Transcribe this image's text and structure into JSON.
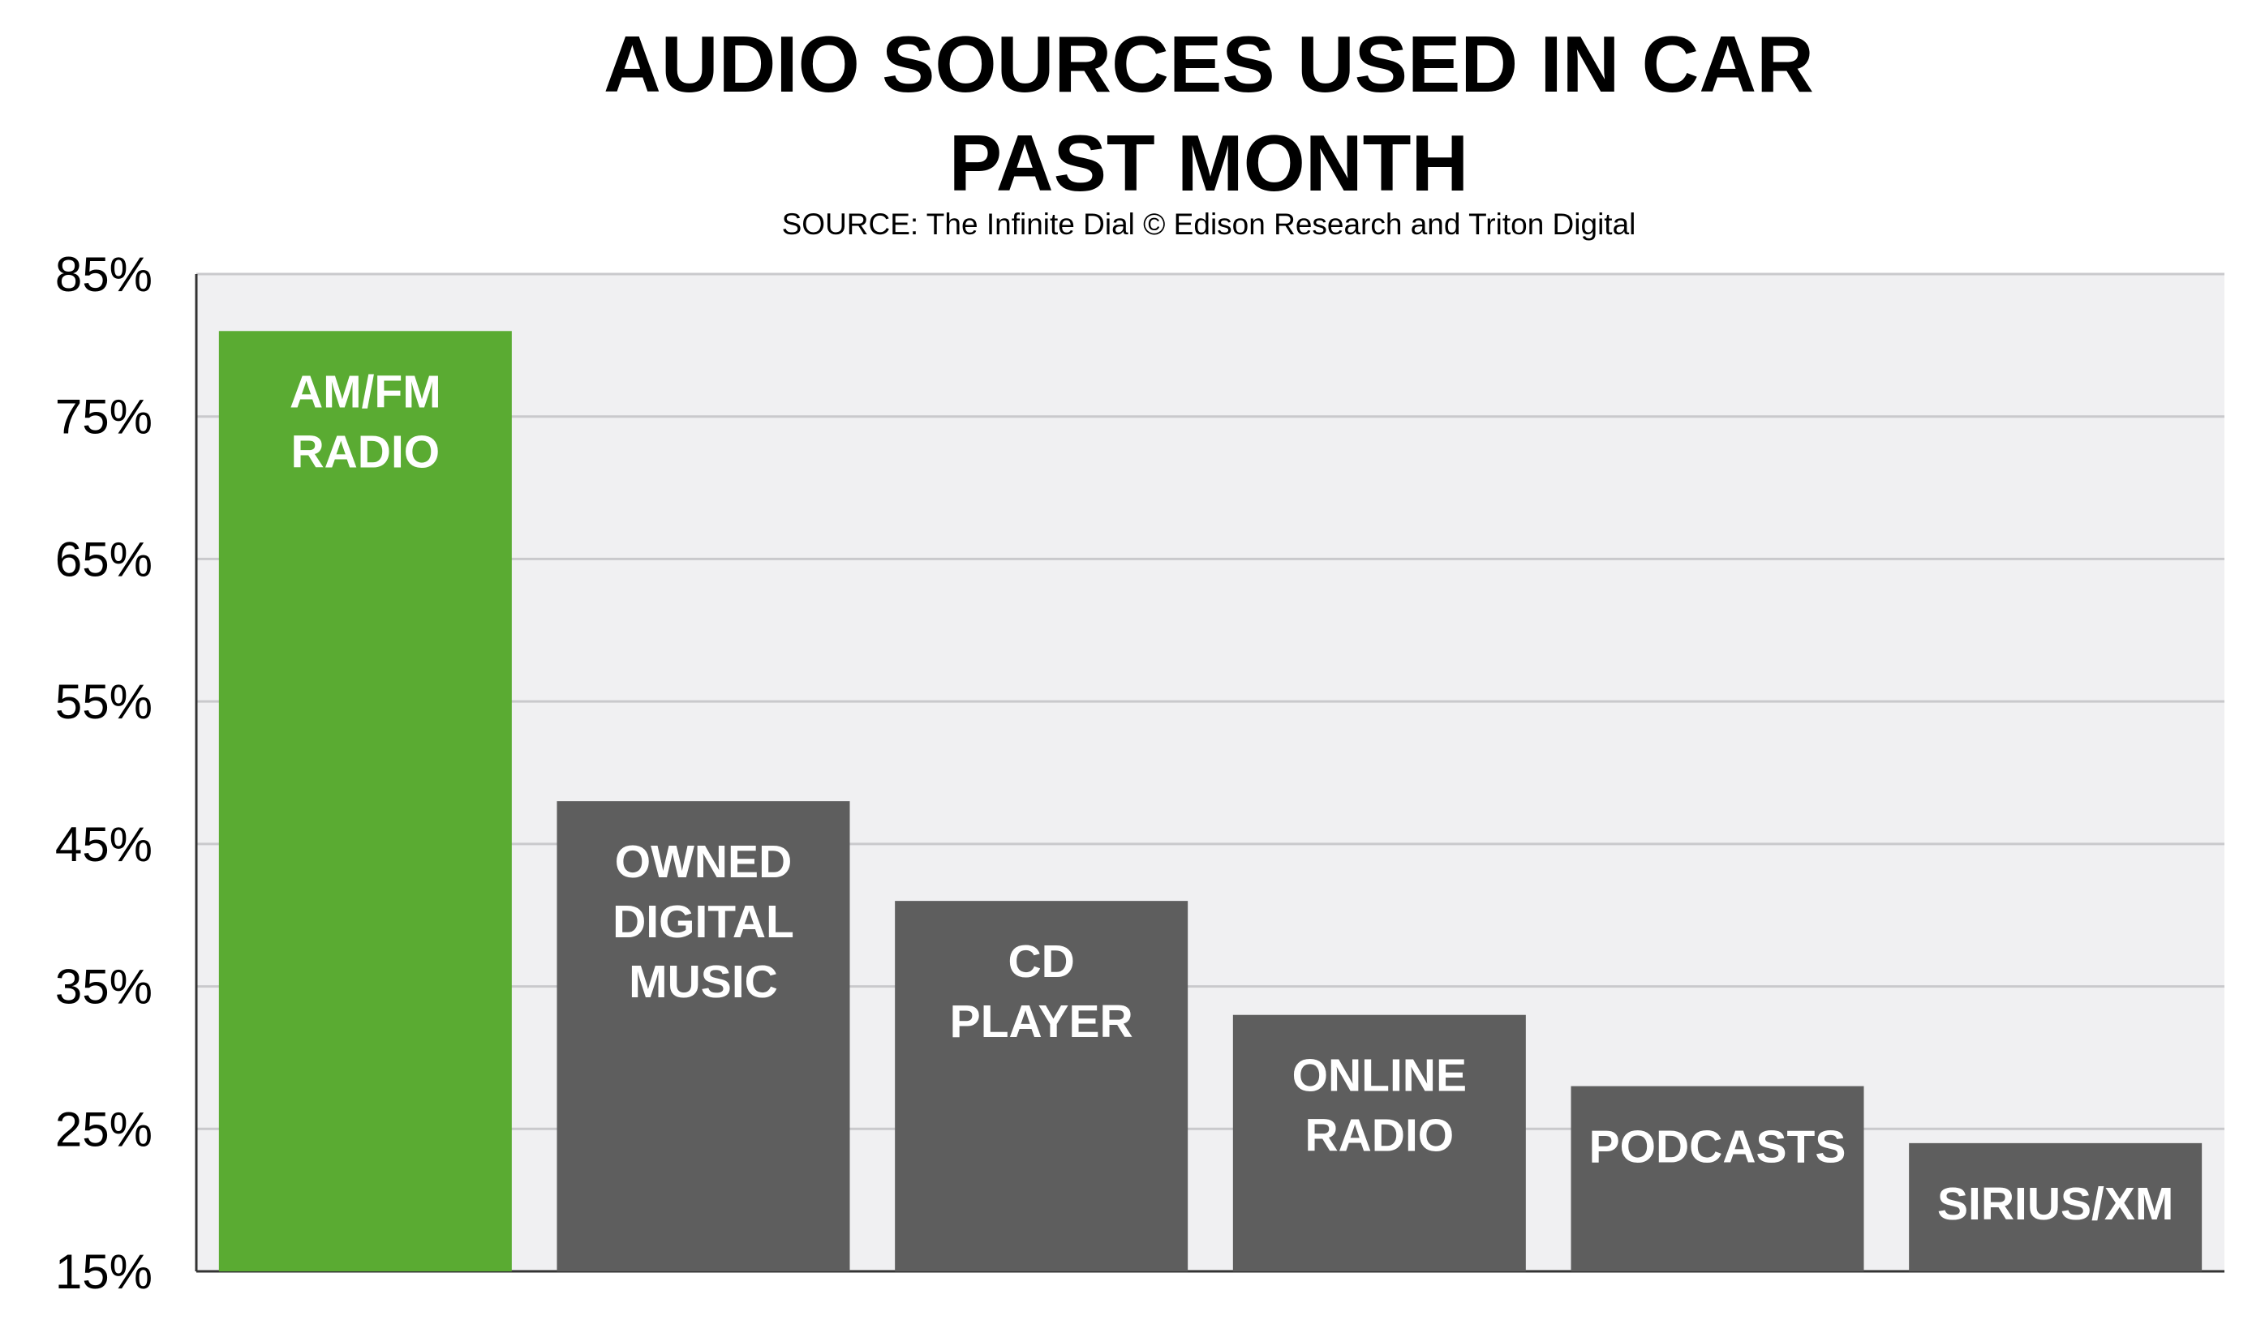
{
  "chart_data": {
    "type": "bar",
    "title_lines": [
      "AUDIO SOURCES USED IN CAR",
      "PAST MONTH"
    ],
    "subtitle": "SOURCE: The Infinite Dial © Edison Research and Triton Digital",
    "categories": [
      [
        "AM/FM",
        "RADIO"
      ],
      [
        "OWNED",
        "DIGITAL",
        "MUSIC"
      ],
      [
        "CD",
        "PLAYER"
      ],
      [
        "ONLINE",
        "RADIO"
      ],
      [
        "PODCASTS"
      ],
      [
        "SIRIUS/XM"
      ]
    ],
    "values": [
      81,
      48,
      41,
      33,
      28,
      24
    ],
    "ylim": [
      15,
      85
    ],
    "yticks": [
      15,
      25,
      35,
      45,
      55,
      65,
      75,
      85
    ],
    "ytick_labels": [
      "15%",
      "25%",
      "35%",
      "45%",
      "55%",
      "65%",
      "75%",
      "85%"
    ],
    "grid": true,
    "colors": {
      "highlight": "#5aab32",
      "bar": "#5e5e5e",
      "plot_bg": "#f0f0f2",
      "grid": "#c9c9cc",
      "axis": "#333333"
    },
    "highlight_index": 0
  }
}
